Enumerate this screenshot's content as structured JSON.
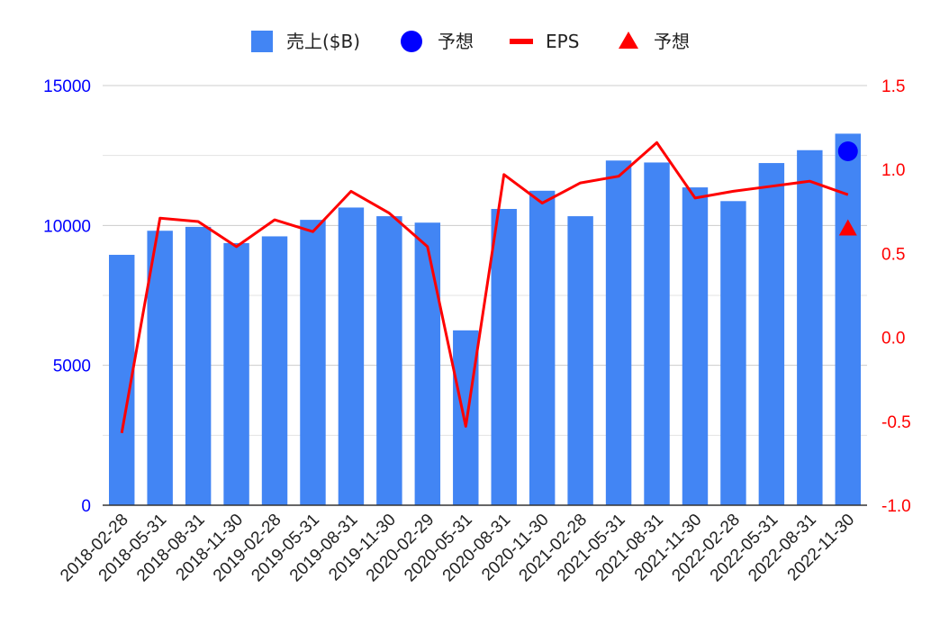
{
  "chart_data": {
    "type": "bar",
    "categories": [
      "2018-02-28",
      "2018-05-31",
      "2018-08-31",
      "2018-11-30",
      "2019-02-28",
      "2019-05-31",
      "2019-08-31",
      "2019-11-30",
      "2020-02-29",
      "2020-05-31",
      "2020-08-31",
      "2020-11-30",
      "2021-02-28",
      "2021-05-31",
      "2021-08-31",
      "2021-11-30",
      "2022-02-28",
      "2022-05-31",
      "2022-08-31",
      "2022-11-30"
    ],
    "series": [
      {
        "name": "売上($B)",
        "kind": "bar",
        "axis": "left",
        "color": "#4285f4",
        "values": [
          8950,
          9810,
          9950,
          9370,
          9610,
          10200,
          10640,
          10330,
          10100,
          6250,
          10590,
          11240,
          10330,
          12320,
          12250,
          11360,
          10870,
          12230,
          12690,
          13280
        ]
      },
      {
        "name": "予想",
        "kind": "point",
        "axis": "left",
        "color": "#0000ff",
        "marker": "circle",
        "points": [
          {
            "x": "2022-11-30",
            "y": 12650
          }
        ]
      },
      {
        "name": "EPS",
        "kind": "line",
        "axis": "right",
        "color": "#ff0000",
        "values": [
          -0.57,
          0.71,
          0.69,
          0.54,
          0.7,
          0.63,
          0.87,
          0.74,
          0.54,
          -0.53,
          0.97,
          0.8,
          0.92,
          0.96,
          1.16,
          0.83,
          0.87,
          0.9,
          0.93,
          0.85
        ]
      },
      {
        "name": "予想",
        "kind": "point",
        "axis": "right",
        "color": "#ff0000",
        "marker": "triangle",
        "points": [
          {
            "x": "2022-11-30",
            "y": 0.65
          }
        ]
      }
    ],
    "y_left": {
      "min": 0,
      "max": 15000,
      "ticks": [
        "0",
        "5000",
        "10000",
        "15000"
      ],
      "color": "#0000ff"
    },
    "y_right": {
      "min": -1.0,
      "max": 1.5,
      "ticks": [
        "-1.0",
        "-0.5",
        "0.0",
        "0.5",
        "1.0",
        "1.5"
      ],
      "color": "#ff0000"
    },
    "grid": true,
    "legend_position": "top-center",
    "title": "",
    "xlabel": "",
    "ylabel": ""
  }
}
